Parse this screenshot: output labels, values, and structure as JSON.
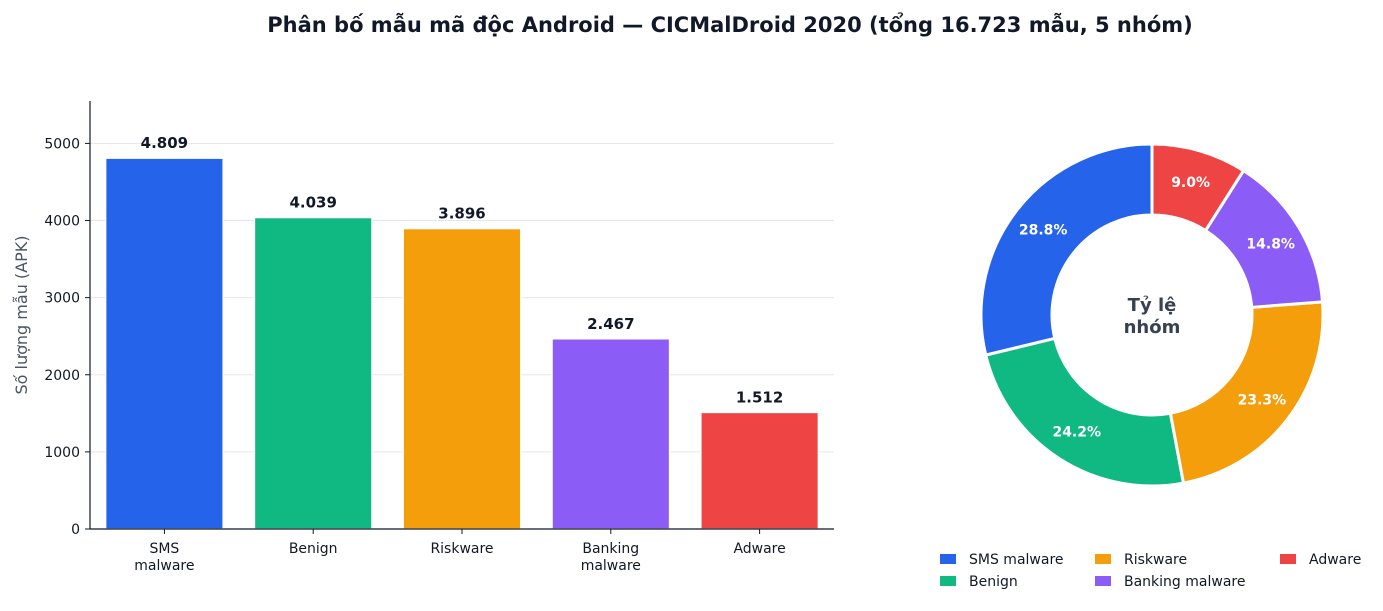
{
  "title": "Phân bố mẫu mã độc Android — CICMalDroid 2020  (tổng 16.723 mẫu, 5 nhóm)",
  "chart_data": [
    {
      "type": "bar",
      "categories": [
        "SMS\nmalware",
        "Benign",
        "Riskware",
        "Banking\nmalware",
        "Adware"
      ],
      "values": [
        4809,
        4039,
        3896,
        2467,
        1512
      ],
      "data_labels": [
        "4.809",
        "4.039",
        "3.896",
        "2.467",
        "1.512"
      ],
      "colors": [
        "#2563eb",
        "#10b981",
        "#f59e0b",
        "#8b5cf6",
        "#ef4444"
      ],
      "ylabel": "Số lượng mẫu (APK)",
      "yticks": [
        0,
        1000,
        2000,
        3000,
        4000,
        5000
      ],
      "ylim": [
        0,
        5550
      ],
      "grid": true
    },
    {
      "type": "pie",
      "labels": [
        "SMS malware",
        "Benign",
        "Riskware",
        "Banking malware",
        "Adware"
      ],
      "values": [
        28.8,
        24.2,
        23.3,
        14.8,
        9.0
      ],
      "data_labels": [
        "28.8%",
        "24.2%",
        "23.3%",
        "14.8%",
        "9.0%"
      ],
      "colors": [
        "#2563eb",
        "#10b981",
        "#f59e0b",
        "#8b5cf6",
        "#ef4444"
      ],
      "center_label": [
        "Tỷ lệ",
        "nhóm"
      ],
      "legend_position": "bottom"
    }
  ]
}
